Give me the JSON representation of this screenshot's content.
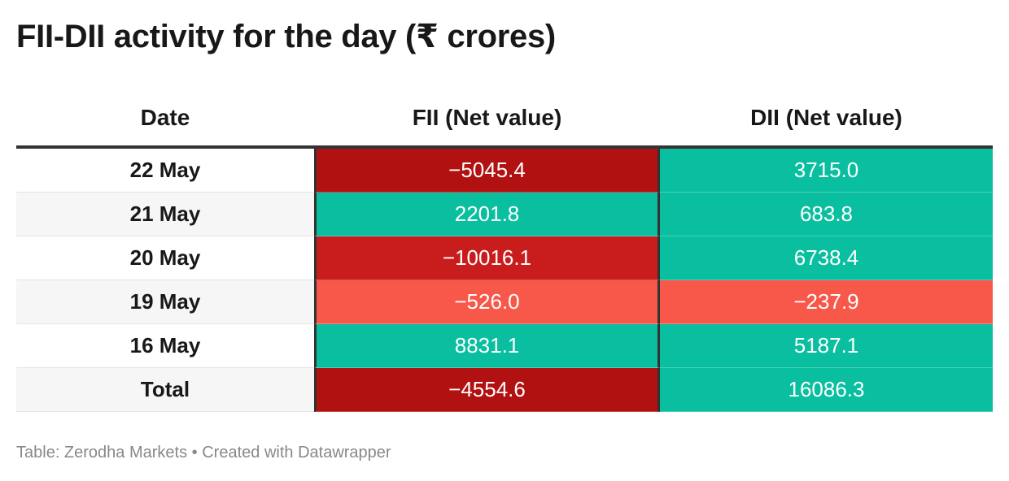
{
  "title": "FII-DII activity for the day (₹ crores)",
  "footer": {
    "source_label": "Table: Zerodha Markets",
    "separator": " • ",
    "credit": "Created with Datawrapper"
  },
  "colors": {
    "strong_negative": "#b21111",
    "negative": "#c91d1d",
    "mild_negative": "#f8584a",
    "positive": "#0abf9f",
    "header_rule": "#333333"
  },
  "chart_data": {
    "type": "table",
    "title": "FII-DII activity for the day (₹ crores)",
    "columns": [
      "Date",
      "FII (Net value)",
      "DII (Net value)"
    ],
    "rows": [
      {
        "date": "22 May",
        "fii": "−5045.4",
        "dii": "3715.0",
        "fii_value": -5045.4,
        "dii_value": 3715.0,
        "fii_color": "#b21111",
        "dii_color": "#0abf9f"
      },
      {
        "date": "21 May",
        "fii": "2201.8",
        "dii": "683.8",
        "fii_value": 2201.8,
        "dii_value": 683.8,
        "fii_color": "#0abf9f",
        "dii_color": "#0abf9f"
      },
      {
        "date": "20 May",
        "fii": "−10016.1",
        "dii": "6738.4",
        "fii_value": -10016.1,
        "dii_value": 6738.4,
        "fii_color": "#c91d1d",
        "dii_color": "#0abf9f"
      },
      {
        "date": "19 May",
        "fii": "−526.0",
        "dii": "−237.9",
        "fii_value": -526.0,
        "dii_value": -237.9,
        "fii_color": "#f8584a",
        "dii_color": "#f8584a"
      },
      {
        "date": "16 May",
        "fii": "8831.1",
        "dii": "5187.1",
        "fii_value": 8831.1,
        "dii_value": 5187.1,
        "fii_color": "#0abf9f",
        "dii_color": "#0abf9f"
      },
      {
        "date": "Total",
        "fii": "−4554.6",
        "dii": "16086.3",
        "fii_value": -4554.6,
        "dii_value": 16086.3,
        "fii_color": "#b21111",
        "dii_color": "#0abf9f"
      }
    ]
  }
}
